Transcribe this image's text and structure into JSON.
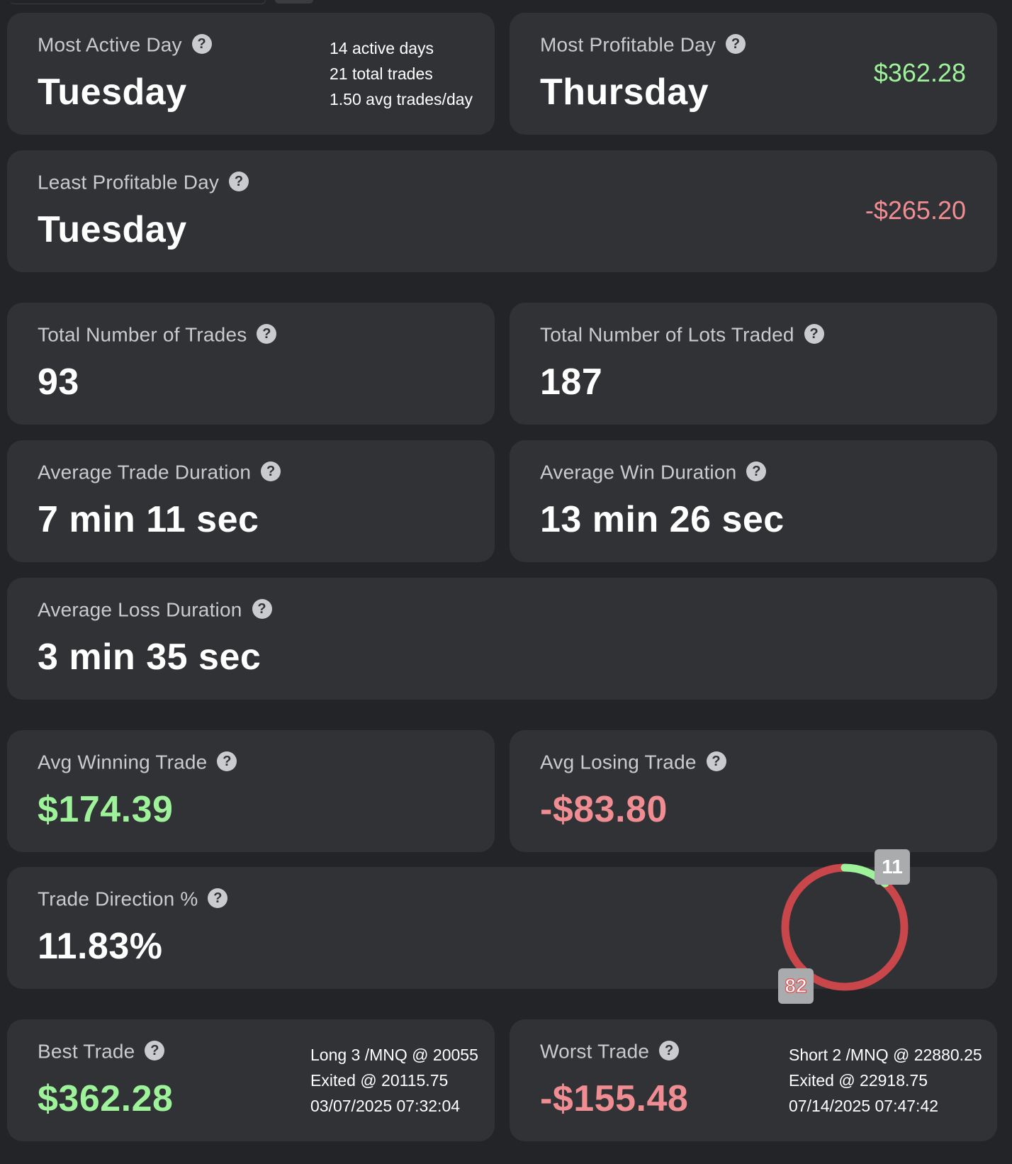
{
  "colors": {
    "background": "#232427",
    "card": "#303236",
    "positive": "#9ef29a",
    "negative": "#f08d92",
    "donut_long": "#9ef29a",
    "donut_short": "#c9474b"
  },
  "most_active_day": {
    "label": "Most Active Day",
    "value": "Tuesday",
    "active_days": "14 active days",
    "total_trades": "21 total trades",
    "avg_trades": "1.50 avg trades/day"
  },
  "most_profitable_day": {
    "label": "Most Profitable Day",
    "value": "Thursday",
    "amount": "$362.28"
  },
  "least_profitable_day": {
    "label": "Least Profitable Day",
    "value": "Tuesday",
    "amount": "-$265.20"
  },
  "total_trades": {
    "label": "Total Number of Trades",
    "value": "93"
  },
  "total_lots": {
    "label": "Total Number of Lots Traded",
    "value": "187"
  },
  "avg_trade_duration": {
    "label": "Average Trade Duration",
    "value": "7 min 11 sec"
  },
  "avg_win_duration": {
    "label": "Average Win Duration",
    "value": "13 min 26 sec"
  },
  "avg_loss_duration": {
    "label": "Average Loss Duration",
    "value": "3 min 35 sec"
  },
  "avg_winning_trade": {
    "label": "Avg Winning Trade",
    "value": "$174.39"
  },
  "avg_losing_trade": {
    "label": "Avg Losing Trade",
    "value": "-$83.80"
  },
  "trade_direction": {
    "label": "Trade Direction %",
    "value": "11.83%",
    "long_count": "11",
    "short_count": "82"
  },
  "best_trade": {
    "label": "Best Trade",
    "value": "$362.28",
    "entry": "Long 3 /MNQ @ 20055",
    "exit": "Exited @ 20115.75",
    "time": "03/07/2025 07:32:04"
  },
  "worst_trade": {
    "label": "Worst Trade",
    "value": "-$155.48",
    "entry": "Short 2 /MNQ @ 22880.25",
    "exit": "Exited @ 22918.75",
    "time": "07/14/2025 07:47:42"
  },
  "help_icon_glyph": "?"
}
